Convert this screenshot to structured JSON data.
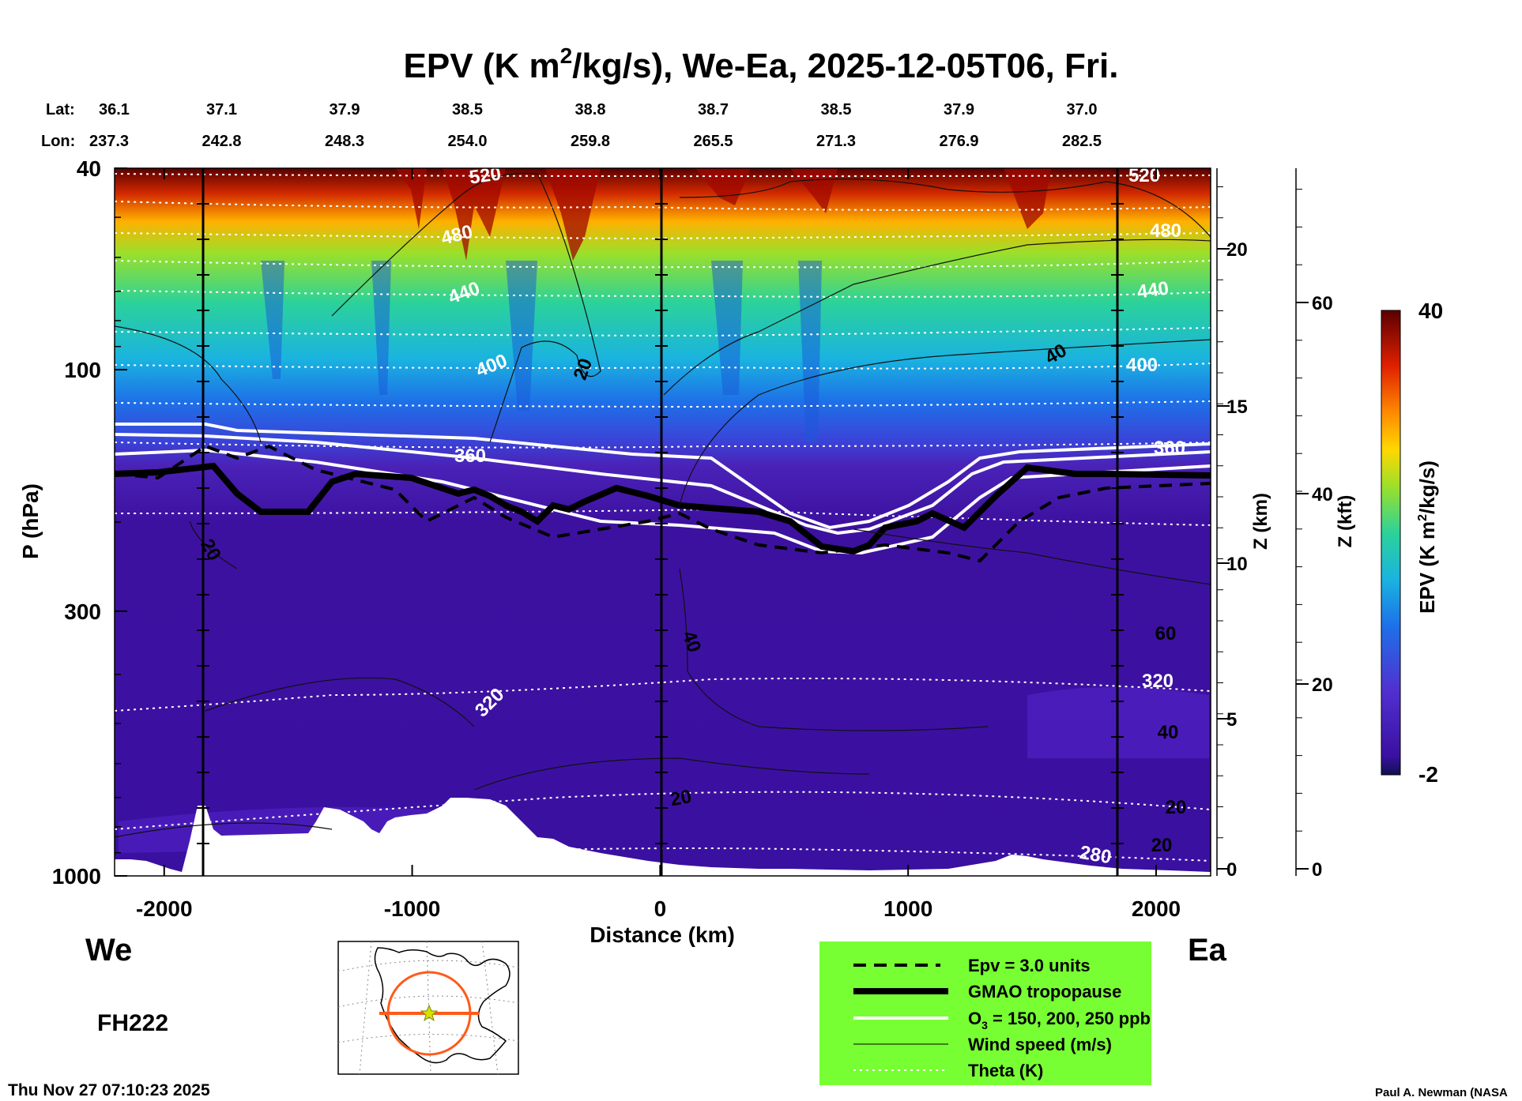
{
  "chart_data": {
    "type": "heatmap",
    "title_main": "EPV (K m",
    "title_sup": "2",
    "title_rest": "/kg/s), We-Ea, 2025-12-05T06, Fri.",
    "lat_label": "Lat:",
    "lon_label": "Lon:",
    "lats": [
      "36.1",
      "37.1",
      "37.9",
      "38.5",
      "38.8",
      "38.7",
      "38.5",
      "37.9",
      "37.0"
    ],
    "lons": [
      "237.3",
      "242.8",
      "248.3",
      "254.0",
      "259.8",
      "265.5",
      "271.3",
      "276.9",
      "282.5"
    ],
    "xlabel": "Distance (km)",
    "xlim": [
      -2200,
      2220
    ],
    "xticks": [
      -2000,
      -1000,
      0,
      1000,
      2000
    ],
    "xtick_labels": [
      "-2000",
      "-1000",
      "0",
      "1000",
      "2000"
    ],
    "ylabel": "P (hPa)",
    "ylim": [
      1000,
      40
    ],
    "yscale": "log",
    "yticks": [
      40,
      100,
      300,
      1000
    ],
    "ytick_labels": [
      "40",
      "100",
      "300",
      "1000"
    ],
    "z_km_label": "Z (km)",
    "z_km_ticks": [
      "20",
      "15",
      "10",
      "5",
      "0"
    ],
    "z_kft_label": "Z (kft)",
    "z_kft_ticks": [
      "60",
      "40",
      "20",
      "0"
    ],
    "colorbar": {
      "label": "EPV (K m",
      "label_sup": "2",
      "label_rest": "/kg/s)",
      "max_label": "40",
      "min_label": "-2",
      "vmin": -2,
      "vmax": 40
    },
    "theta_labels": [
      "520",
      "480",
      "440",
      "400",
      "360",
      "320",
      "280",
      "520",
      "480",
      "440",
      "400",
      "360",
      "320"
    ],
    "wind_labels": [
      "20",
      "40",
      "20",
      "40",
      "60",
      "40",
      "20",
      "20",
      "20"
    ],
    "legend": {
      "placement": "bottom-center",
      "entries": [
        "Epv = 3.0 units",
        "GMAO tropopause",
        "O",
        "Wind speed (m/s)",
        "Theta (K)"
      ],
      "o3_sub": "3",
      "o3_rest": " = 150, 200, 250 ppb"
    },
    "left_label": "We",
    "right_label": "Ea",
    "forecast_hour": "FH222",
    "timestamp": "Thu Nov 27 07:10:23 2025",
    "credit": "Paul A. Newman (NASA"
  },
  "colors": {
    "legend_bg": "#77ff33",
    "stratosphere_top": "#5a0000",
    "troposphere": "#3c10a0",
    "terrain": "#ffffff"
  }
}
